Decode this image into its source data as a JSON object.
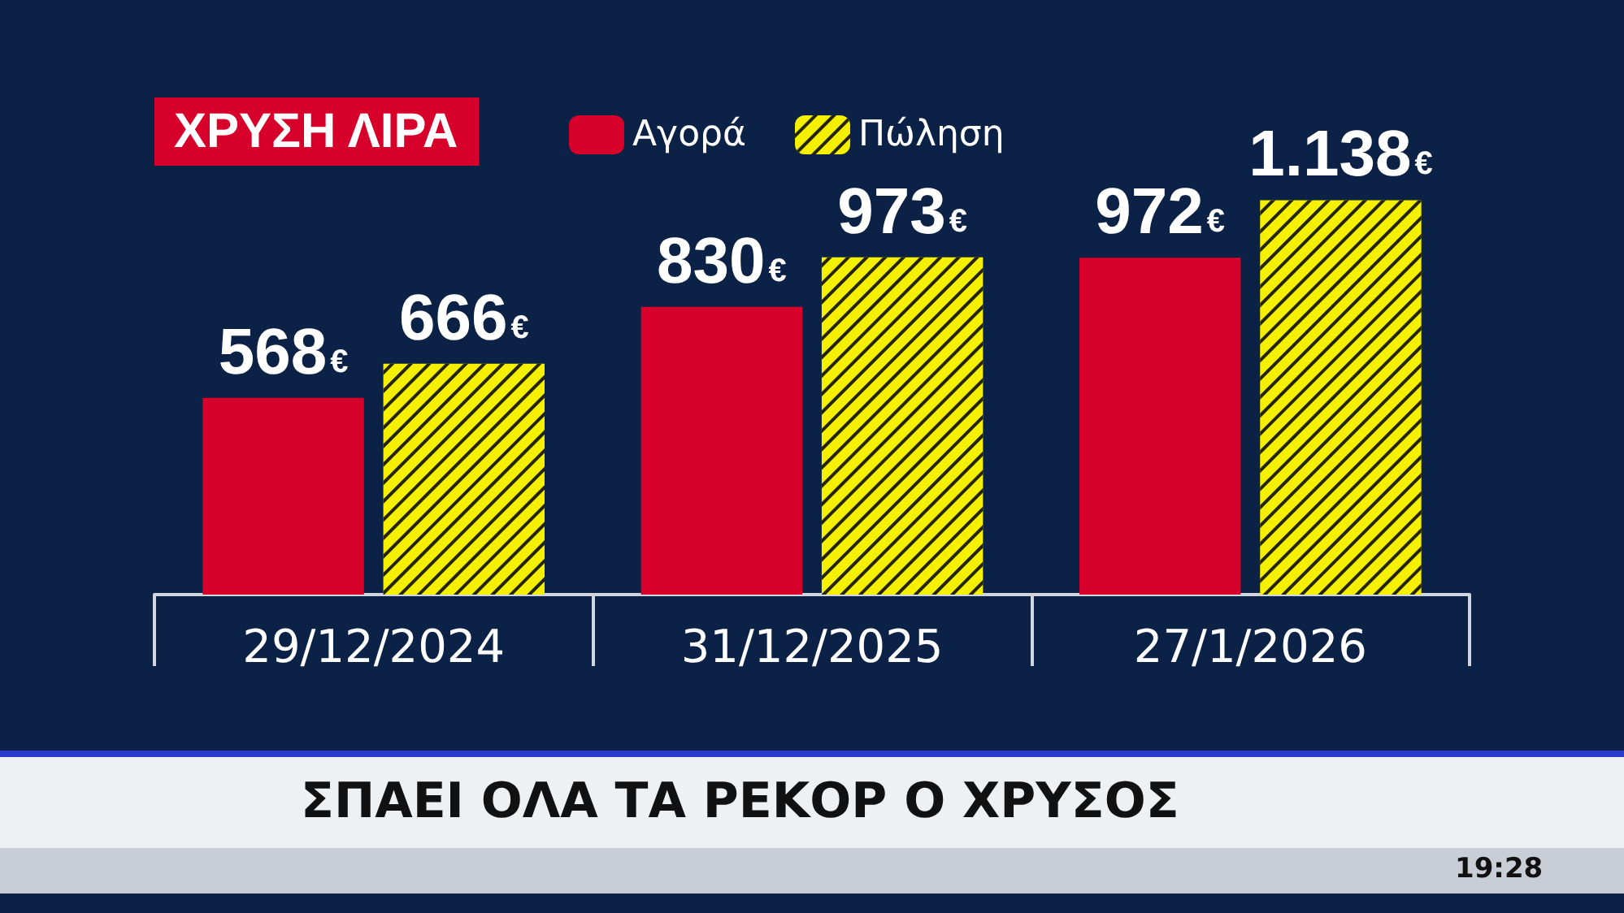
{
  "chart_data": {
    "type": "bar",
    "title": "ΧΡΥΣΗ ΛΙΡΑ",
    "categories": [
      "29/12/2024",
      "31/12/2025",
      "27/1/2026"
    ],
    "series": [
      {
        "name": "Αγορά",
        "color": "#d6002a",
        "values": [
          568,
          830,
          972
        ],
        "value_labels": [
          "568€",
          "830€",
          "972€"
        ]
      },
      {
        "name": "Πώληση",
        "color": "#f5ef00",
        "values": [
          666,
          973,
          1138
        ],
        "value_labels": [
          "666€",
          "973€",
          "1.138€"
        ]
      }
    ],
    "legend": "top left",
    "grid": false,
    "annotations": [
      "ΣΠΑΕΙ ΟΛΑ ΤΑ ΡΕΚΟΡ Ο ΧΡΥΣΟΣ",
      "19:28"
    ]
  }
}
